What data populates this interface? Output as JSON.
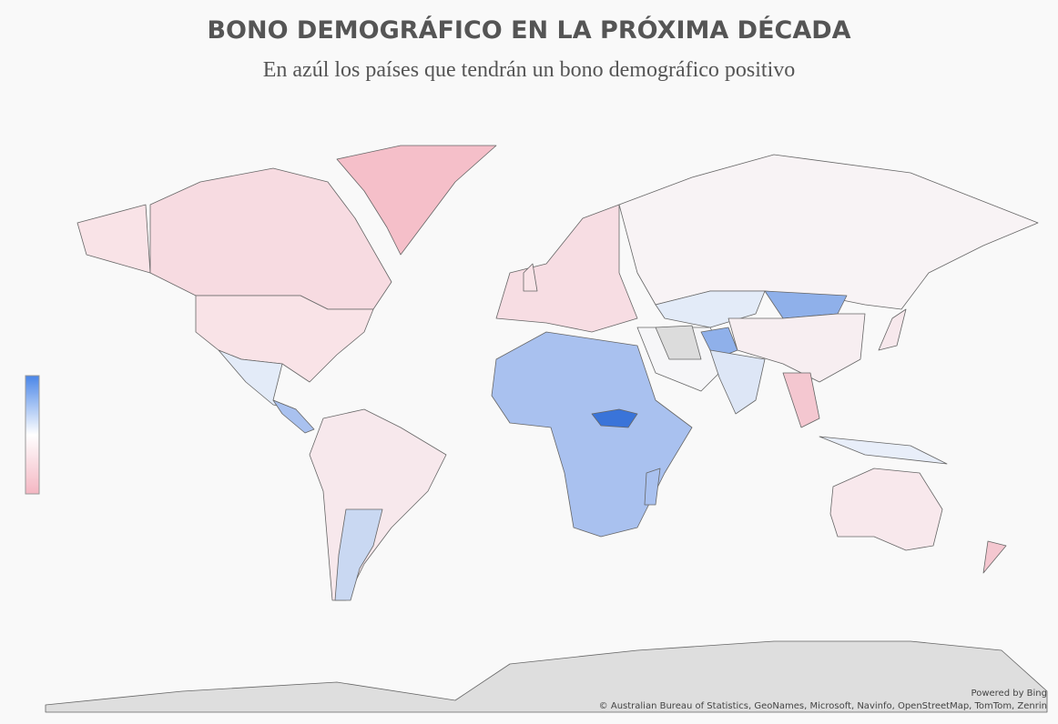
{
  "title": "BONO DEMOGRÁFICO EN LA PRÓXIMA DÉCADA",
  "subtitle": "En azúl los países que tendrán un bono demográfico positivo",
  "powered_by": "Powered by Bing",
  "attribution": "© Australian Bureau of Statistics, GeoNames, Microsoft, Navinfo, OpenStreetMap, TomTom, Zenrin"
}
